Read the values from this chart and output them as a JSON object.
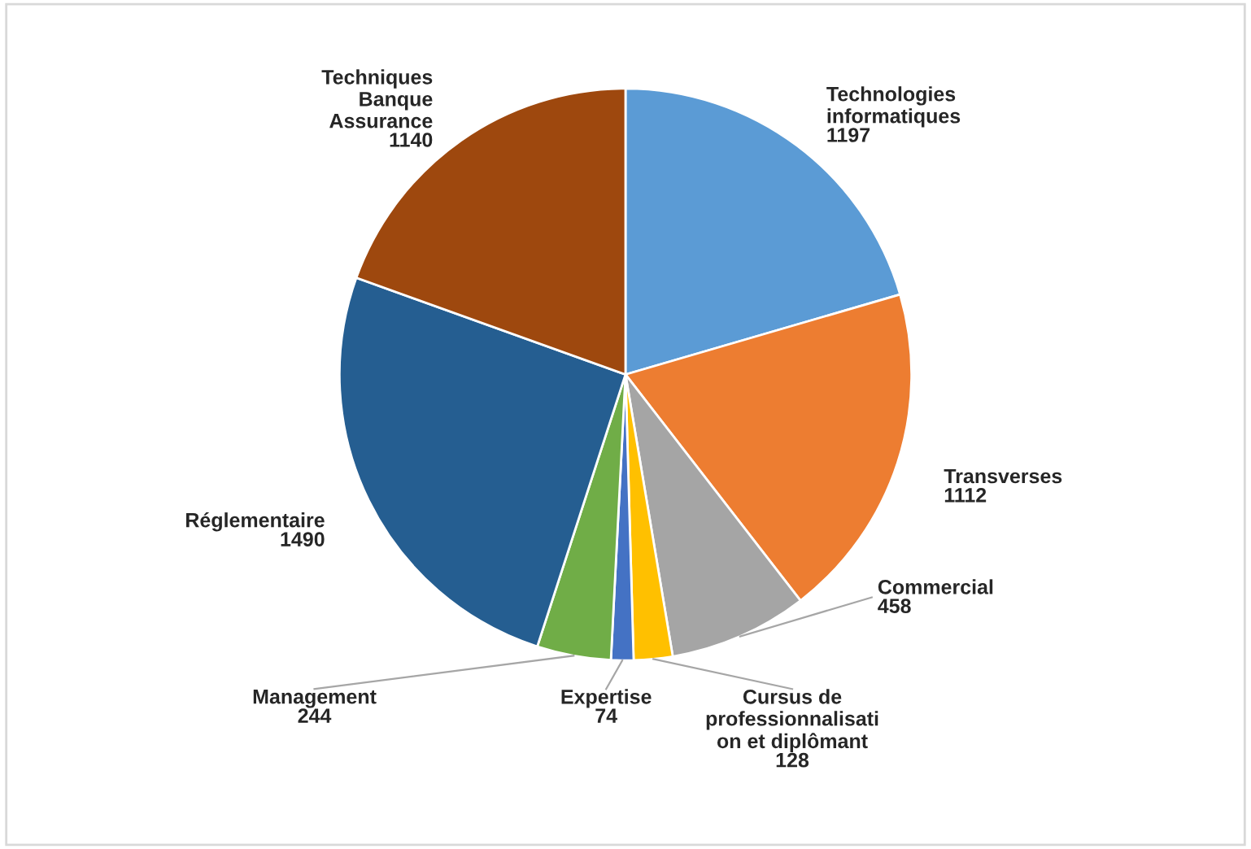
{
  "chart_data": {
    "type": "pie",
    "data_labels": true,
    "categories": [
      "Technologies\ninformatiques",
      "Transverses",
      "Commercial",
      "Cursus de\nprofessionnalisati\non et diplômant",
      "Expertise",
      "Management",
      "Réglementaire",
      "Techniques\nBanque\nAssurance"
    ],
    "values": [
      1197,
      1112,
      458,
      128,
      74,
      244,
      1490,
      1140
    ],
    "colors": [
      "#5b9bd5",
      "#ed7d31",
      "#a5a5a5",
      "#ffc000",
      "#4472c4",
      "#70ad47",
      "#255e91",
      "#9e480e"
    ]
  }
}
